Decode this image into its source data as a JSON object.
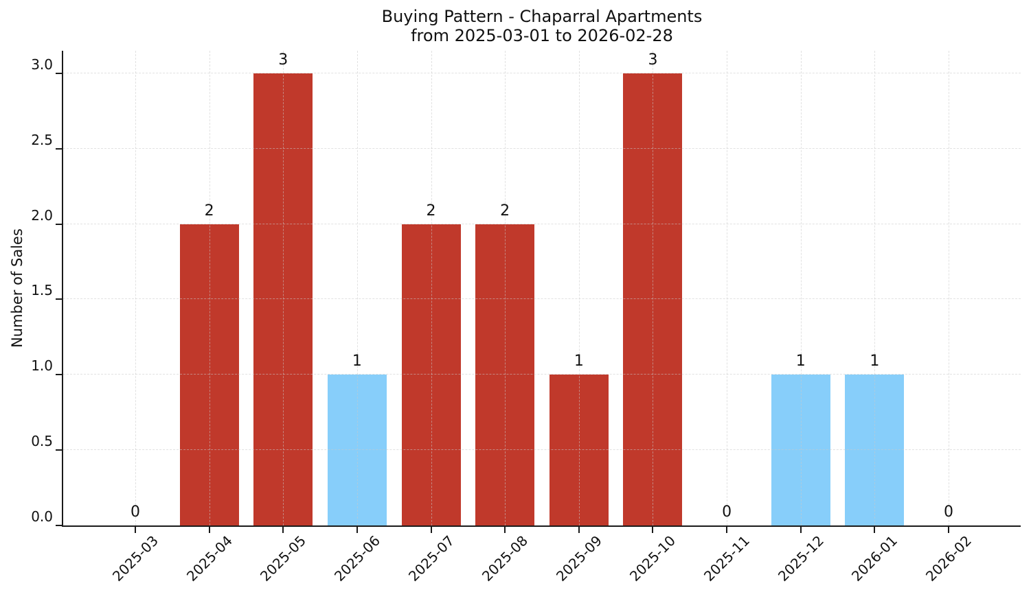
{
  "chart_data": {
    "type": "bar",
    "title": "Buying Pattern - Chaparral Apartments",
    "subtitle": "from 2025-03-01 to 2026-02-28",
    "xlabel": "",
    "ylabel": "Number of Sales",
    "categories": [
      "2025-03",
      "2025-04",
      "2025-05",
      "2025-06",
      "2025-07",
      "2025-08",
      "2025-09",
      "2025-10",
      "2025-11",
      "2025-12",
      "2026-01",
      "2026-02"
    ],
    "values": [
      0,
      2,
      3,
      1,
      2,
      2,
      1,
      3,
      0,
      1,
      1,
      0
    ],
    "bar_colors": [
      null,
      "#c0392b",
      "#c0392b",
      "#87cefa",
      "#c0392b",
      "#c0392b",
      "#c0392b",
      "#c0392b",
      null,
      "#87cefa",
      "#87cefa",
      null
    ],
    "yticks": [
      "0.0",
      "0.5",
      "1.0",
      "1.5",
      "2.0",
      "2.5",
      "3.0"
    ],
    "ylim": [
      0,
      3.15
    ],
    "grid": true,
    "legend_position": "none"
  },
  "colors": {
    "red_bar": "#c0392b",
    "blue_bar": "#87cefa",
    "grid": "#dcdcdc",
    "axis": "#1a1a1a",
    "text": "#111111",
    "background": "#ffffff"
  }
}
